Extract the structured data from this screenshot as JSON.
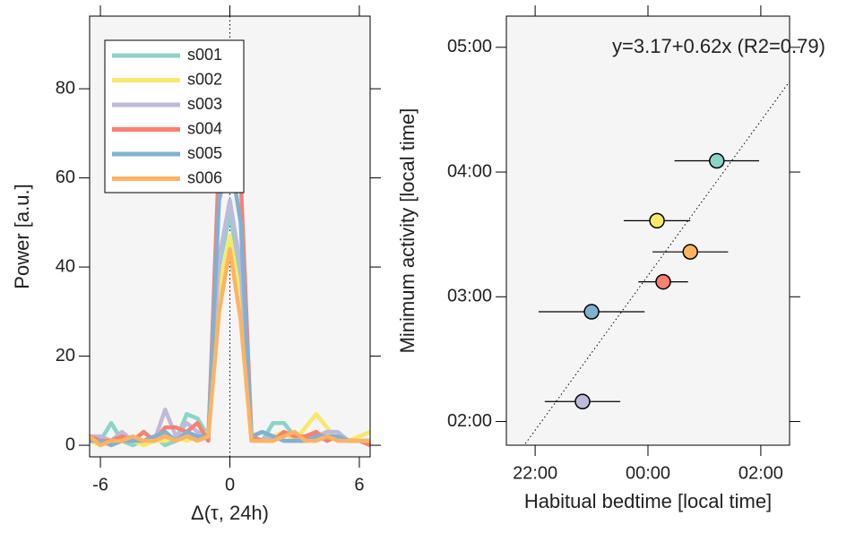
{
  "chart_data": [
    {
      "type": "line",
      "xlabel": "Δ(τ, 24h)",
      "ylabel": "Power [a.u.]",
      "x": [
        -6.5,
        -6,
        -5.5,
        -5,
        -4.5,
        -4,
        -3.5,
        -3,
        -2.5,
        -2,
        -1.5,
        -1,
        -0.5,
        0,
        0.5,
        1,
        1.5,
        2,
        2.5,
        3,
        3.5,
        4,
        4.5,
        5,
        5.5,
        6,
        6.5
      ],
      "series": [
        {
          "name": "s001",
          "color": "#8dd3c7",
          "values": [
            1,
            1,
            5,
            1,
            0,
            1,
            2,
            0,
            1,
            7,
            6,
            2,
            40,
            52,
            38,
            2,
            1,
            5,
            5,
            2,
            1,
            2,
            1,
            2,
            1,
            1,
            1
          ]
        },
        {
          "name": "s002",
          "color": "#f8e86c",
          "values": [
            1,
            0,
            1,
            1,
            1,
            0,
            1,
            1,
            2,
            1,
            2,
            3,
            35,
            47,
            33,
            2,
            1,
            2,
            3,
            1,
            4,
            7,
            4,
            1,
            1,
            2,
            3
          ]
        },
        {
          "name": "s003",
          "color": "#bebada",
          "values": [
            2,
            2,
            1,
            3,
            1,
            3,
            1,
            8,
            2,
            5,
            3,
            2,
            42,
            55,
            40,
            1,
            1,
            2,
            1,
            1,
            1,
            2,
            3,
            3,
            1,
            1,
            1
          ]
        },
        {
          "name": "s004",
          "color": "#fb8072",
          "values": [
            2,
            1,
            1,
            2,
            1,
            3,
            1,
            4,
            4,
            3,
            5,
            1,
            65,
            78,
            60,
            2,
            1,
            1,
            3,
            2,
            2,
            3,
            1,
            2,
            1,
            1,
            0
          ]
        },
        {
          "name": "s005",
          "color": "#80b1d3",
          "values": [
            1,
            1,
            0,
            1,
            1,
            1,
            2,
            3,
            1,
            3,
            2,
            2,
            55,
            65,
            50,
            2,
            3,
            2,
            1,
            1,
            1,
            2,
            2,
            2,
            1,
            1,
            1
          ]
        },
        {
          "name": "s006",
          "color": "#fdb462",
          "values": [
            2,
            0,
            1,
            1,
            2,
            1,
            1,
            2,
            1,
            2,
            1,
            2,
            30,
            44,
            28,
            1,
            1,
            1,
            2,
            3,
            1,
            1,
            2,
            1,
            1,
            1,
            1
          ]
        }
      ],
      "xlim": [
        -6.5,
        6.5
      ],
      "xticks": [
        -6,
        0,
        6
      ],
      "ylim": [
        -2.6,
        96.3
      ],
      "yticks": [
        0,
        20,
        40,
        60,
        80
      ],
      "legend": "top-left"
    },
    {
      "type": "scatter",
      "xlabel": "Habitual bedtime [local time]",
      "ylabel": "Minimum activity [local time]",
      "annotation": "y=3.17+0.62x (R2=0.79)",
      "fit": {
        "intercept": 3.17,
        "slope": 0.62
      },
      "x": [
        1.22,
        0.16,
        0.75,
        0.27,
        -1.0,
        -1.16
      ],
      "values": [
        4.09,
        3.61,
        3.36,
        3.12,
        2.88,
        2.16
      ],
      "xerr": [
        0.75,
        0.59,
        0.67,
        0.44,
        0.94,
        0.67
      ],
      "colors": [
        "#8dd3c7",
        "#f8e86c",
        "#fdb462",
        "#fb8072",
        "#80b1d3",
        "#bebada"
      ],
      "xlim": [
        -2.51,
        2.51
      ],
      "xticks": [
        {
          "value": -2,
          "label": "22:00"
        },
        {
          "value": 0,
          "label": "00:00"
        },
        {
          "value": 2,
          "label": "02:00"
        }
      ],
      "ylim": [
        1.81,
        5.25
      ],
      "yticks": [
        {
          "value": 2,
          "label": "02:00"
        },
        {
          "value": 3,
          "label": "03:00"
        },
        {
          "value": 4,
          "label": "04:00"
        },
        {
          "value": 5,
          "label": "05:00"
        }
      ]
    }
  ]
}
